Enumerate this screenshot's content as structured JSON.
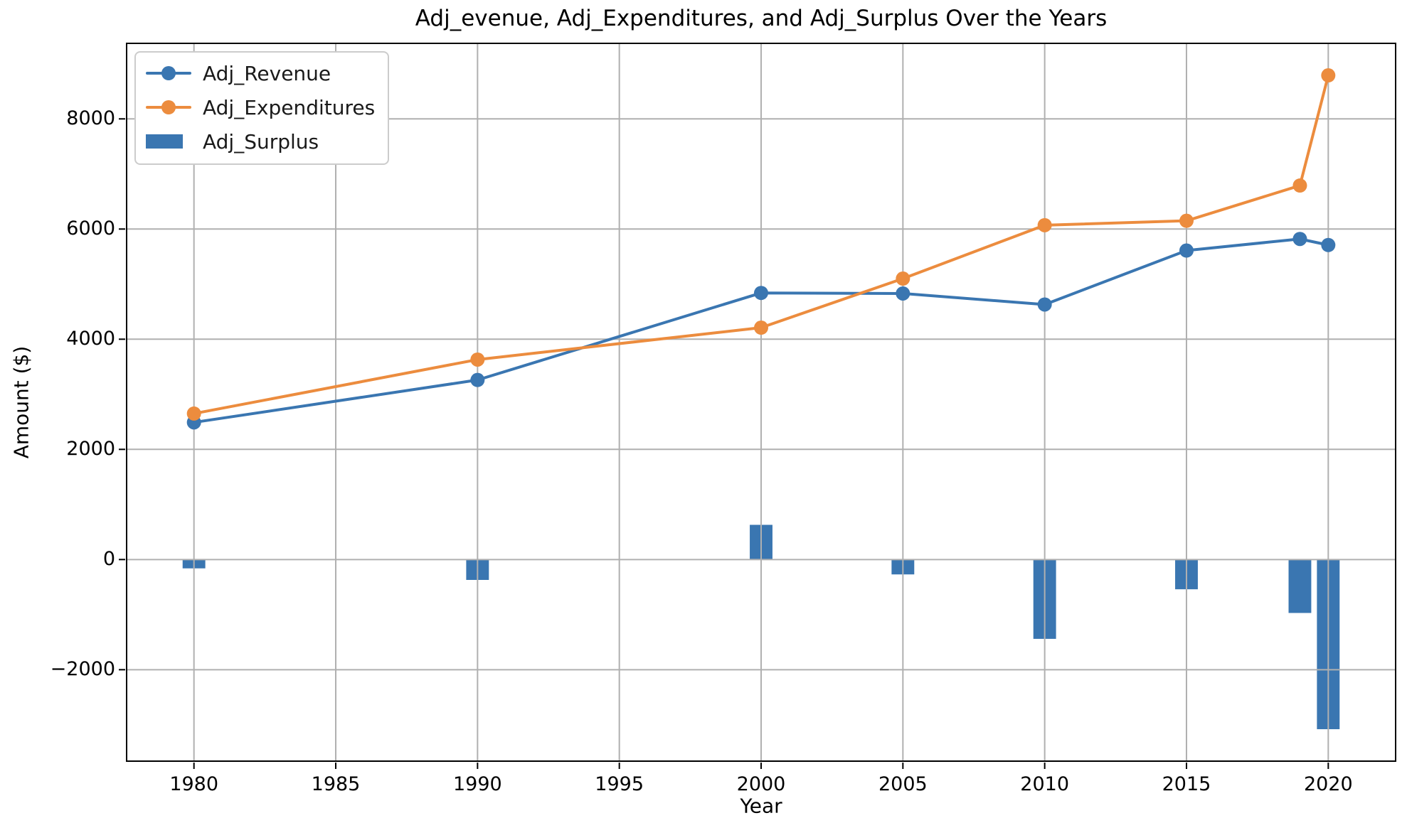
{
  "window": {
    "background": "#ffffff"
  },
  "chart_data": {
    "type": "line+bar",
    "title": "Adj_evenue, Adj_Expenditures, and Adj_Surplus Over the Years",
    "xlabel": "Year",
    "ylabel": "Amount ($)",
    "x": [
      1980,
      1990,
      2000,
      2005,
      2010,
      2015,
      2019,
      2020
    ],
    "series": [
      {
        "name": "Adj_Revenue",
        "type": "line",
        "marker": "circle",
        "color": "#3a76b1",
        "values": [
          2490,
          3260,
          4840,
          4830,
          4630,
          5610,
          5820,
          5710
        ]
      },
      {
        "name": "Adj_Expenditures",
        "type": "line",
        "marker": "circle",
        "color": "#ec8c3e",
        "values": [
          2650,
          3630,
          4210,
          5100,
          6070,
          6150,
          6790,
          8790
        ]
      },
      {
        "name": "Adj_Surplus",
        "type": "bar",
        "color": "#3a76b1",
        "bar_width_x": 0.8,
        "values": [
          -160,
          -370,
          630,
          -270,
          -1440,
          -540,
          -970,
          -3080
        ]
      }
    ],
    "xlim": [
      1977.6,
      2022.4
    ],
    "ylim": [
      -3673,
      9384
    ],
    "xticks": [
      1980,
      1985,
      1990,
      1995,
      2000,
      2005,
      2010,
      2015,
      2020
    ],
    "yticks": [
      -2000,
      0,
      2000,
      4000,
      6000,
      8000
    ],
    "grid": true,
    "grid_color": "#b0b0b0",
    "axis_color": "#000000",
    "text_color": "#1a1a1a",
    "legend_position": "upper left"
  }
}
